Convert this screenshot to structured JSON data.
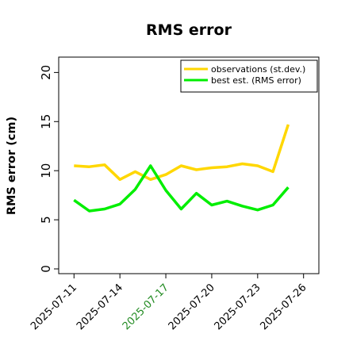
{
  "chart_data": {
    "type": "line",
    "title": "RMS error",
    "xlabel": "",
    "ylabel": "RMS error (cm)",
    "ylim": [
      0,
      21
    ],
    "yticks": [
      "0",
      "5",
      "10",
      "15",
      "20"
    ],
    "x_tick_labels": [
      "2025-07-11",
      "2025-07-14",
      "2025-07-17",
      "2025-07-20",
      "2025-07-23",
      "2025-07-26"
    ],
    "x_tick_highlight": "2025-07-17",
    "x_tick_highlight_color": "#228b22",
    "x_start": "2025-07-10",
    "x_end": "2025-07-27",
    "x": [
      "2025-07-11",
      "2025-07-12",
      "2025-07-13",
      "2025-07-14",
      "2025-07-15",
      "2025-07-16",
      "2025-07-17",
      "2025-07-18",
      "2025-07-19",
      "2025-07-20",
      "2025-07-21",
      "2025-07-22",
      "2025-07-23",
      "2025-07-24",
      "2025-07-25",
      "2025-07-26"
    ],
    "series": [
      {
        "name": "observations (st.dev.)",
        "color": "#ffd700",
        "values": [
          10.5,
          10.4,
          10.6,
          9.1,
          9.9,
          9.1,
          9.6,
          10.5,
          10.1,
          10.3,
          10.4,
          10.7,
          10.5,
          9.9,
          14.7,
          null
        ]
      },
      {
        "name": "best est. (RMS error)",
        "color": "#00ee00",
        "values": [
          7.0,
          5.9,
          6.1,
          6.6,
          8.1,
          10.5,
          8.0,
          6.1,
          7.7,
          6.5,
          6.9,
          6.4,
          6.0,
          6.5,
          8.3,
          null
        ]
      }
    ],
    "grid": false,
    "legend_position": "top-right"
  }
}
